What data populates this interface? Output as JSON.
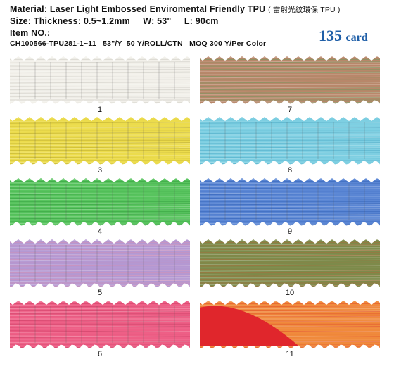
{
  "header": {
    "material_label": "Material:",
    "material_value": "Laser Light Embossed Enviromental Friendly TPU",
    "material_cn": "( 雷射光紋環保 TPU )",
    "size_label": "Size:",
    "size_value": "Thickness: 0.5~1.2mm     W: 53\"     L: 90cm",
    "item_label": "Item NO.:",
    "item_value": "CH100566-TPU281-1~11   53\"/Y  50 Y/ROLL/CTN   MOQ 300 Y/Per Color"
  },
  "badge": {
    "number": "135",
    "unit": "card"
  },
  "swatches": [
    {
      "label": "1",
      "base": "#f2f0ea",
      "accent": "#c9c7bd",
      "grid": true
    },
    {
      "label": "7",
      "base": "#b8876a",
      "accent": "#6c9a5c",
      "grid": false
    },
    {
      "label": "3",
      "base": "#ecdc4c",
      "accent": "#b7a52c",
      "grid": true
    },
    {
      "label": "8",
      "base": "#7ecfe2",
      "accent": "#4aa9c4",
      "grid": true
    },
    {
      "label": "4",
      "base": "#58c45e",
      "accent": "#2f9a3a",
      "grid": true
    },
    {
      "label": "9",
      "base": "#5a86d4",
      "accent": "#2f5fb5",
      "grid": true
    },
    {
      "label": "5",
      "base": "#b498d2",
      "accent": "#d98fb0",
      "grid": true
    },
    {
      "label": "10",
      "base": "#7d8a4a",
      "accent": "#b06a3a",
      "grid": false
    },
    {
      "label": "6",
      "base": "#ee5f86",
      "accent": "#c83a62",
      "grid": true
    },
    {
      "label": "11",
      "base": "#f08a3c",
      "accent": "#e04a2a",
      "grid": false,
      "peel": "#e0262c"
    }
  ]
}
